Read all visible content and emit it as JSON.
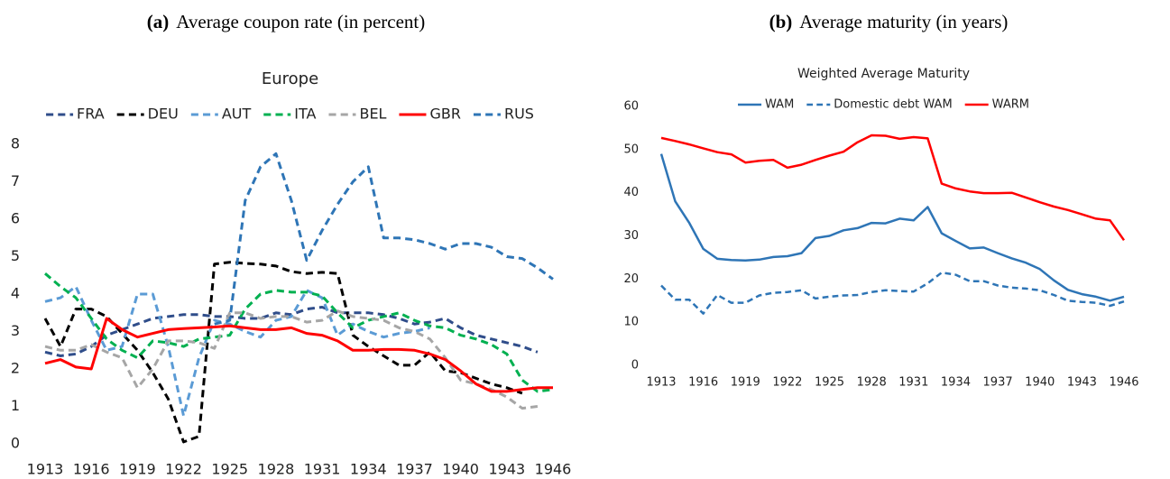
{
  "chart_data": [
    {
      "type": "line",
      "caption_label": "(a)",
      "caption": "Average coupon rate (in percent)",
      "title": "Europe",
      "legend": "top",
      "x": [
        1913,
        1914,
        1915,
        1916,
        1917,
        1918,
        1919,
        1920,
        1921,
        1922,
        1923,
        1924,
        1925,
        1926,
        1927,
        1928,
        1929,
        1930,
        1931,
        1932,
        1933,
        1934,
        1935,
        1936,
        1937,
        1938,
        1939,
        1940,
        1941,
        1942,
        1943,
        1944,
        1945,
        1946
      ],
      "xlim": [
        1913,
        1946
      ],
      "xticks": [
        1913,
        1916,
        1919,
        1922,
        1925,
        1928,
        1931,
        1934,
        1937,
        1940,
        1943,
        1946
      ],
      "ylim": [
        0,
        8
      ],
      "yticks": [
        0,
        1,
        2,
        3,
        4,
        5,
        6,
        7,
        8
      ],
      "series": [
        {
          "name": "FRA",
          "color": "#2f4d8a",
          "dash": true,
          "values": [
            2.45,
            2.35,
            2.4,
            2.6,
            2.9,
            3.05,
            3.2,
            3.35,
            3.4,
            3.45,
            3.45,
            3.4,
            3.4,
            3.35,
            3.35,
            3.5,
            3.45,
            3.6,
            3.65,
            3.5,
            3.5,
            3.5,
            3.45,
            3.35,
            3.2,
            3.25,
            3.35,
            3.1,
            2.9,
            2.8,
            2.7,
            2.6,
            2.45,
            null
          ]
        },
        {
          "name": "DEU",
          "color": "#000000",
          "dash": true,
          "values": [
            3.35,
            2.6,
            3.6,
            3.6,
            3.4,
            2.95,
            2.5,
            1.9,
            1.2,
            0.05,
            0.2,
            4.8,
            4.85,
            4.82,
            4.8,
            4.75,
            4.6,
            4.55,
            4.58,
            4.55,
            2.9,
            2.6,
            2.35,
            2.1,
            2.1,
            2.45,
            1.95,
            1.9,
            1.75,
            1.6,
            1.5,
            1.35,
            null,
            null
          ]
        },
        {
          "name": "AUT",
          "color": "#5b9bd5",
          "dash": true,
          "values": [
            3.8,
            3.9,
            4.2,
            3.3,
            2.5,
            2.6,
            4.0,
            4.0,
            2.6,
            0.75,
            2.3,
            3.3,
            3.2,
            3.0,
            2.85,
            3.3,
            3.4,
            4.1,
            3.9,
            2.9,
            3.2,
            3.0,
            2.85,
            2.95,
            3.0,
            3.1,
            null,
            null,
            null,
            null,
            null,
            null,
            null,
            null
          ]
        },
        {
          "name": "ITA",
          "color": "#00b050",
          "dash": true,
          "values": [
            4.55,
            4.2,
            3.9,
            3.35,
            2.8,
            2.5,
            2.3,
            2.75,
            2.7,
            2.6,
            2.8,
            2.85,
            2.9,
            3.6,
            4.0,
            4.1,
            4.05,
            4.05,
            3.95,
            3.5,
            3.1,
            3.3,
            3.4,
            3.5,
            3.3,
            3.15,
            3.1,
            2.9,
            2.8,
            2.65,
            2.4,
            1.7,
            1.4,
            1.45
          ]
        },
        {
          "name": "BEL",
          "color": "#a6a6a6",
          "dash": true,
          "values": [
            2.6,
            2.5,
            2.5,
            2.65,
            2.45,
            2.3,
            1.5,
            2.0,
            2.75,
            2.75,
            2.7,
            2.55,
            3.5,
            3.5,
            3.35,
            3.4,
            3.4,
            3.25,
            3.3,
            3.55,
            3.4,
            3.35,
            3.3,
            3.1,
            3.0,
            2.8,
            2.3,
            1.7,
            1.6,
            1.45,
            1.25,
            0.95,
            1.0,
            null
          ]
        },
        {
          "name": "GBR",
          "color": "#ff0000",
          "dash": false,
          "values": [
            2.15,
            2.25,
            2.05,
            2.0,
            3.35,
            3.05,
            2.85,
            2.95,
            3.05,
            3.08,
            3.1,
            3.12,
            3.15,
            3.1,
            3.05,
            3.05,
            3.1,
            2.95,
            2.9,
            2.75,
            2.5,
            2.5,
            2.52,
            2.52,
            2.5,
            2.4,
            2.25,
            1.95,
            1.6,
            1.4,
            1.4,
            1.45,
            1.5,
            1.5
          ]
        },
        {
          "name": "RUS",
          "color": "#2e75b6",
          "dash": true,
          "values": [
            null,
            null,
            null,
            null,
            null,
            null,
            null,
            null,
            null,
            null,
            null,
            3.2,
            3.3,
            6.5,
            7.4,
            7.75,
            6.5,
            4.9,
            5.7,
            6.4,
            7.0,
            7.4,
            5.5,
            5.5,
            5.45,
            5.35,
            5.2,
            5.35,
            5.35,
            5.25,
            5.0,
            4.95,
            4.7,
            4.4
          ]
        }
      ]
    },
    {
      "type": "line",
      "caption_label": "(b)",
      "caption": "Average maturity (in years)",
      "title": "Weighted Average Maturity",
      "legend": "top",
      "x": [
        1913,
        1914,
        1915,
        1916,
        1917,
        1918,
        1919,
        1920,
        1921,
        1922,
        1923,
        1924,
        1925,
        1926,
        1927,
        1928,
        1929,
        1930,
        1931,
        1932,
        1933,
        1934,
        1935,
        1936,
        1937,
        1938,
        1939,
        1940,
        1941,
        1942,
        1943,
        1944,
        1945,
        1946
      ],
      "xlim": [
        1913,
        1946
      ],
      "xticks": [
        1913,
        1916,
        1919,
        1922,
        1925,
        1928,
        1931,
        1934,
        1937,
        1940,
        1943,
        1946
      ],
      "ylim": [
        0,
        60
      ],
      "yticks": [
        0,
        10,
        20,
        30,
        40,
        50,
        60
      ],
      "series": [
        {
          "name": "WAM",
          "color": "#2e75b6",
          "dash": false,
          "values": [
            49,
            38,
            33,
            27,
            24.7,
            24.4,
            24.3,
            24.5,
            25.1,
            25.3,
            26,
            29.5,
            30,
            31.3,
            31.8,
            33,
            32.9,
            34,
            33.6,
            36.7,
            30.6,
            28.8,
            27.1,
            27.3,
            26,
            24.8,
            23.8,
            22.3,
            19.7,
            17.5,
            16.5,
            15.9,
            15,
            15.9
          ]
        },
        {
          "name": "Domestic debt WAM",
          "color": "#2e75b6",
          "dash": true,
          "values": [
            18.5,
            15.2,
            15.2,
            12,
            16.3,
            14.5,
            14.5,
            16.2,
            16.8,
            17,
            17.4,
            15.5,
            15.9,
            16.2,
            16.3,
            17,
            17.4,
            17.2,
            17.1,
            19,
            21.5,
            21,
            19.5,
            19.5,
            18.5,
            18,
            17.8,
            17.4,
            16.3,
            15,
            14.7,
            14.5,
            13.8,
            14.8
          ]
        },
        {
          "name": "WARM",
          "color": "#ff0000",
          "dash": false,
          "values": [
            52.7,
            52,
            51.2,
            50.3,
            49.4,
            48.9,
            47,
            47.4,
            47.6,
            45.8,
            46.5,
            47.6,
            48.6,
            49.5,
            51.7,
            53.3,
            53.2,
            52.5,
            52.9,
            52.6,
            42.1,
            41,
            40.3,
            39.9,
            39.9,
            40,
            38.9,
            37.8,
            36.8,
            36,
            35,
            34,
            33.6,
            29
          ]
        }
      ]
    }
  ]
}
